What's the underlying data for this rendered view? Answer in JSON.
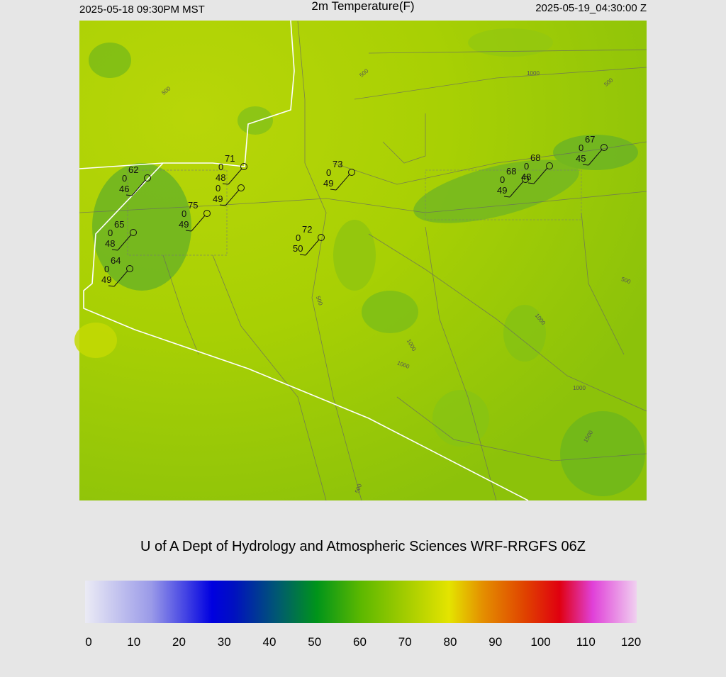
{
  "header": {
    "left": "2025-05-18 09:30PM MST",
    "title": "2m Temperature(F)",
    "right": "2025-05-19_04:30:00 Z"
  },
  "stations": [
    {
      "temp": 62,
      "wind": 0,
      "dew": 46
    },
    {
      "temp": 71,
      "wind": 0,
      "dew": 48
    },
    {
      "wind": 0,
      "dew": 49
    },
    {
      "temp": 75,
      "wind": 0,
      "dew": 49
    },
    {
      "temp": 65,
      "wind": 0,
      "dew": 48
    },
    {
      "temp": 64,
      "wind": 0,
      "dew": 49
    },
    {
      "temp": 73,
      "wind": 0,
      "dew": 49
    },
    {
      "temp": 72,
      "wind": 0,
      "dew": 50
    },
    {
      "temp": 68,
      "wind": 0,
      "dew": 49
    },
    {
      "temp": 68,
      "wind": 0,
      "dew": 48
    },
    {
      "temp": 67,
      "wind": 0,
      "dew": 45
    }
  ],
  "contour_labels": [
    "500",
    "500",
    "1000",
    "500",
    "500",
    "1000",
    "1000",
    "1000",
    "1000",
    "1500",
    "500",
    "500"
  ],
  "credit": "U of A Dept of Hydrology and Atmospheric Sciences WRF-RRGFS 06Z",
  "colorbar": {
    "ticks": [
      0,
      10,
      20,
      30,
      40,
      50,
      60,
      70,
      80,
      90,
      100,
      110,
      120
    ]
  }
}
